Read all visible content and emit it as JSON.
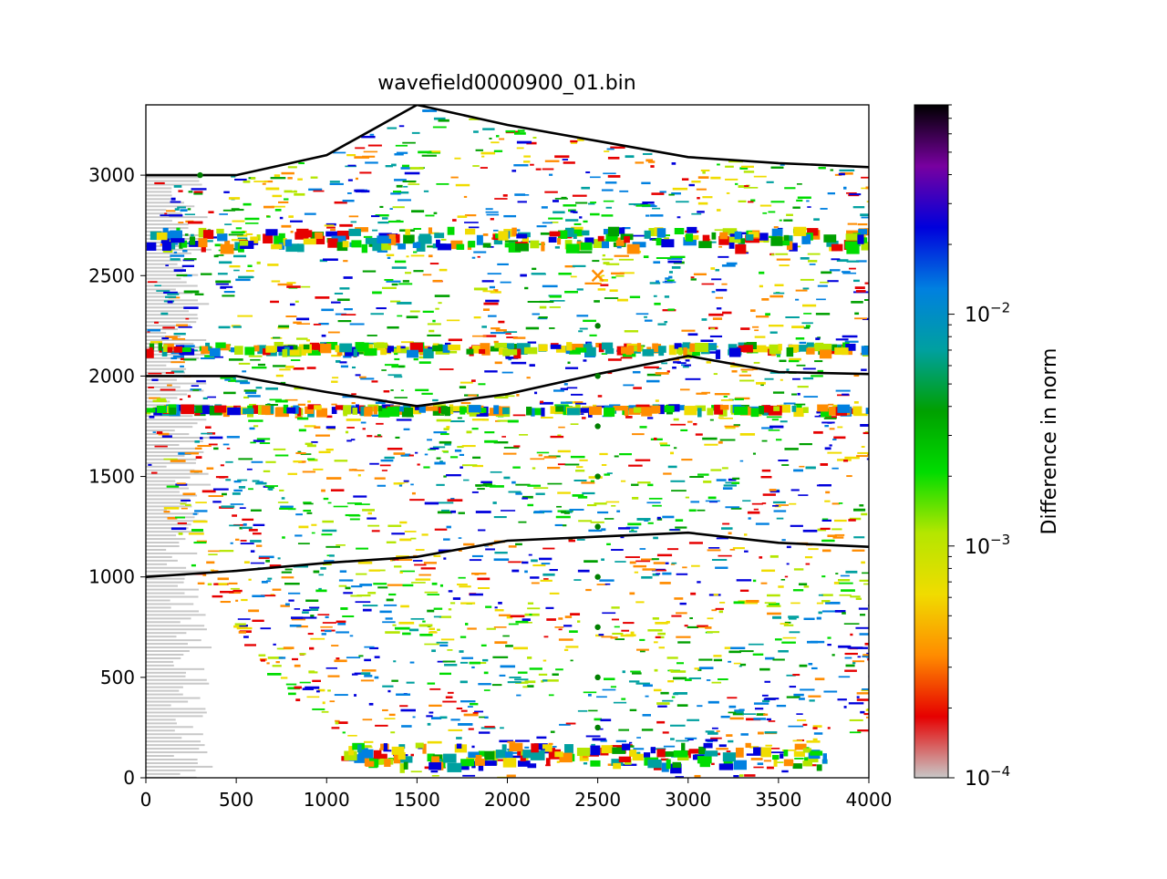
{
  "chart_data": {
    "type": "heatmap",
    "title": "wavefield0000900_01.bin",
    "xlabel": "",
    "ylabel": "",
    "xlim": [
      0,
      4000
    ],
    "ylim": [
      0,
      3350
    ],
    "x_ticks": [
      "0",
      "500",
      "1000",
      "1500",
      "2000",
      "2500",
      "3000",
      "3500",
      "4000"
    ],
    "y_ticks": [
      "0",
      "500",
      "1000",
      "1500",
      "2000",
      "2500",
      "3000"
    ],
    "grid": false,
    "colorbar": {
      "label": "Difference in norm",
      "scale": "log",
      "range": [
        0.0001,
        0.08
      ],
      "tick_labels": [
        {
          "value": 0.0001,
          "base": "10",
          "exp": "−4"
        },
        {
          "value": 0.001,
          "base": "10",
          "exp": "−3"
        },
        {
          "value": 0.01,
          "base": "10",
          "exp": "−2"
        }
      ],
      "colors": [
        "#c8c8c8",
        "#e60000",
        "#ff8c00",
        "#f0dc00",
        "#b4e600",
        "#00dc00",
        "#00a000",
        "#00a0a0",
        "#0080e0",
        "#0000dc",
        "#7800a0",
        "#000000"
      ]
    },
    "interfaces": [
      {
        "name": "",
        "points": [
          [
            0,
            3000
          ],
          [
            500,
            3000
          ],
          [
            1000,
            3100
          ],
          [
            1500,
            3350
          ],
          [
            2000,
            3250
          ],
          [
            2500,
            3170
          ],
          [
            3000,
            3090
          ],
          [
            3500,
            3060
          ],
          [
            4000,
            3040
          ]
        ]
      },
      {
        "name": "",
        "points": [
          [
            0,
            2000
          ],
          [
            500,
            2000
          ],
          [
            1000,
            1920
          ],
          [
            1500,
            1850
          ],
          [
            2000,
            1910
          ],
          [
            2500,
            2010
          ],
          [
            3000,
            2100
          ],
          [
            3500,
            2020
          ],
          [
            4000,
            2010
          ]
        ]
      },
      {
        "name": "",
        "points": [
          [
            0,
            1000
          ],
          [
            500,
            1030
          ],
          [
            1000,
            1070
          ],
          [
            1500,
            1100
          ],
          [
            2000,
            1180
          ],
          [
            2500,
            1200
          ],
          [
            3000,
            1220
          ],
          [
            3500,
            1170
          ],
          [
            4000,
            1150
          ]
        ]
      }
    ],
    "receivers": {
      "marker": "dot",
      "color": "#008000",
      "points": [
        [
          300,
          3000
        ],
        [
          2500,
          250
        ],
        [
          2500,
          500
        ],
        [
          2500,
          750
        ],
        [
          2500,
          1000
        ],
        [
          2500,
          1250
        ],
        [
          2500,
          1500
        ],
        [
          2500,
          1750
        ],
        [
          2500,
          2000
        ],
        [
          2500,
          2250
        ]
      ]
    },
    "source": {
      "marker": "x",
      "color": "#ff8c00",
      "x": 2500,
      "y": 2500
    }
  }
}
